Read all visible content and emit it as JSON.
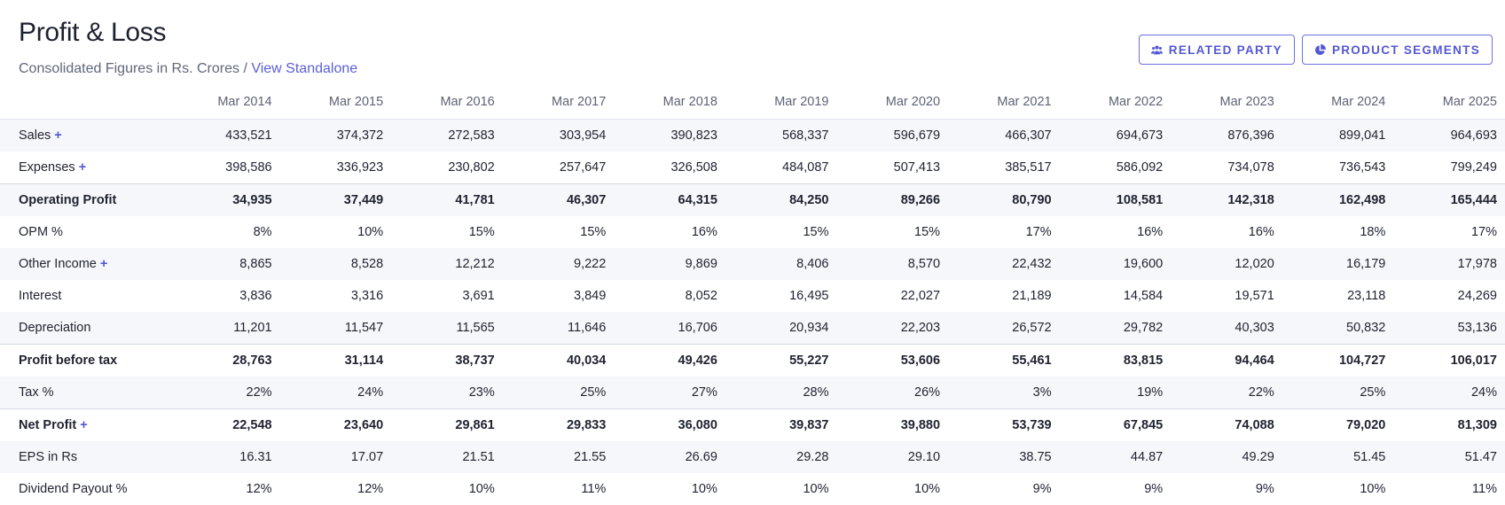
{
  "header": {
    "title": "Profit & Loss",
    "subtitle": "Consolidated Figures in Rs. Crores /",
    "view_link": "View Standalone"
  },
  "actions": {
    "related_party": "RELATED PARTY",
    "product_segments": "PRODUCT SEGMENTS"
  },
  "table": {
    "columns": [
      "Mar 2014",
      "Mar 2015",
      "Mar 2016",
      "Mar 2017",
      "Mar 2018",
      "Mar 2019",
      "Mar 2020",
      "Mar 2021",
      "Mar 2022",
      "Mar 2023",
      "Mar 2024",
      "Mar 2025"
    ],
    "rows": [
      {
        "label": "Sales",
        "expandable": true,
        "bold": false,
        "sep": false,
        "values": [
          "433,521",
          "374,372",
          "272,583",
          "303,954",
          "390,823",
          "568,337",
          "596,679",
          "466,307",
          "694,673",
          "876,396",
          "899,041",
          "964,693"
        ]
      },
      {
        "label": "Expenses",
        "expandable": true,
        "bold": false,
        "sep": false,
        "values": [
          "398,586",
          "336,923",
          "230,802",
          "257,647",
          "326,508",
          "484,087",
          "507,413",
          "385,517",
          "586,092",
          "734,078",
          "736,543",
          "799,249"
        ]
      },
      {
        "label": "Operating Profit",
        "expandable": false,
        "bold": true,
        "sep": true,
        "values": [
          "34,935",
          "37,449",
          "41,781",
          "46,307",
          "64,315",
          "84,250",
          "89,266",
          "80,790",
          "108,581",
          "142,318",
          "162,498",
          "165,444"
        ]
      },
      {
        "label": "OPM %",
        "expandable": false,
        "bold": false,
        "sep": false,
        "values": [
          "8%",
          "10%",
          "15%",
          "15%",
          "16%",
          "15%",
          "15%",
          "17%",
          "16%",
          "16%",
          "18%",
          "17%"
        ]
      },
      {
        "label": "Other Income",
        "expandable": true,
        "bold": false,
        "sep": false,
        "values": [
          "8,865",
          "8,528",
          "12,212",
          "9,222",
          "9,869",
          "8,406",
          "8,570",
          "22,432",
          "19,600",
          "12,020",
          "16,179",
          "17,978"
        ]
      },
      {
        "label": "Interest",
        "expandable": false,
        "bold": false,
        "sep": false,
        "values": [
          "3,836",
          "3,316",
          "3,691",
          "3,849",
          "8,052",
          "16,495",
          "22,027",
          "21,189",
          "14,584",
          "19,571",
          "23,118",
          "24,269"
        ]
      },
      {
        "label": "Depreciation",
        "expandable": false,
        "bold": false,
        "sep": false,
        "values": [
          "11,201",
          "11,547",
          "11,565",
          "11,646",
          "16,706",
          "20,934",
          "22,203",
          "26,572",
          "29,782",
          "40,303",
          "50,832",
          "53,136"
        ]
      },
      {
        "label": "Profit before tax",
        "expandable": false,
        "bold": true,
        "sep": true,
        "values": [
          "28,763",
          "31,114",
          "38,737",
          "40,034",
          "49,426",
          "55,227",
          "53,606",
          "55,461",
          "83,815",
          "94,464",
          "104,727",
          "106,017"
        ]
      },
      {
        "label": "Tax %",
        "expandable": false,
        "bold": false,
        "sep": false,
        "values": [
          "22%",
          "24%",
          "23%",
          "25%",
          "27%",
          "28%",
          "26%",
          "3%",
          "19%",
          "22%",
          "25%",
          "24%"
        ]
      },
      {
        "label": "Net Profit",
        "expandable": true,
        "bold": true,
        "sep": true,
        "values": [
          "22,548",
          "23,640",
          "29,861",
          "29,833",
          "36,080",
          "39,837",
          "39,880",
          "53,739",
          "67,845",
          "74,088",
          "79,020",
          "81,309"
        ]
      },
      {
        "label": "EPS in Rs",
        "expandable": false,
        "bold": false,
        "sep": false,
        "values": [
          "16.31",
          "17.07",
          "21.51",
          "21.55",
          "26.69",
          "29.28",
          "29.10",
          "38.75",
          "44.87",
          "49.29",
          "51.45",
          "51.47"
        ]
      },
      {
        "label": "Dividend Payout %",
        "expandable": false,
        "bold": false,
        "sep": false,
        "values": [
          "12%",
          "12%",
          "10%",
          "11%",
          "10%",
          "10%",
          "10%",
          "9%",
          "9%",
          "9%",
          "10%",
          "11%"
        ]
      }
    ],
    "expand_symbol": "+"
  },
  "colors": {
    "accent": "#5457d4",
    "row_stripe": "#f6f7fa"
  },
  "icons": {
    "related_party": "users-icon",
    "product_segments": "pie-chart-icon"
  }
}
